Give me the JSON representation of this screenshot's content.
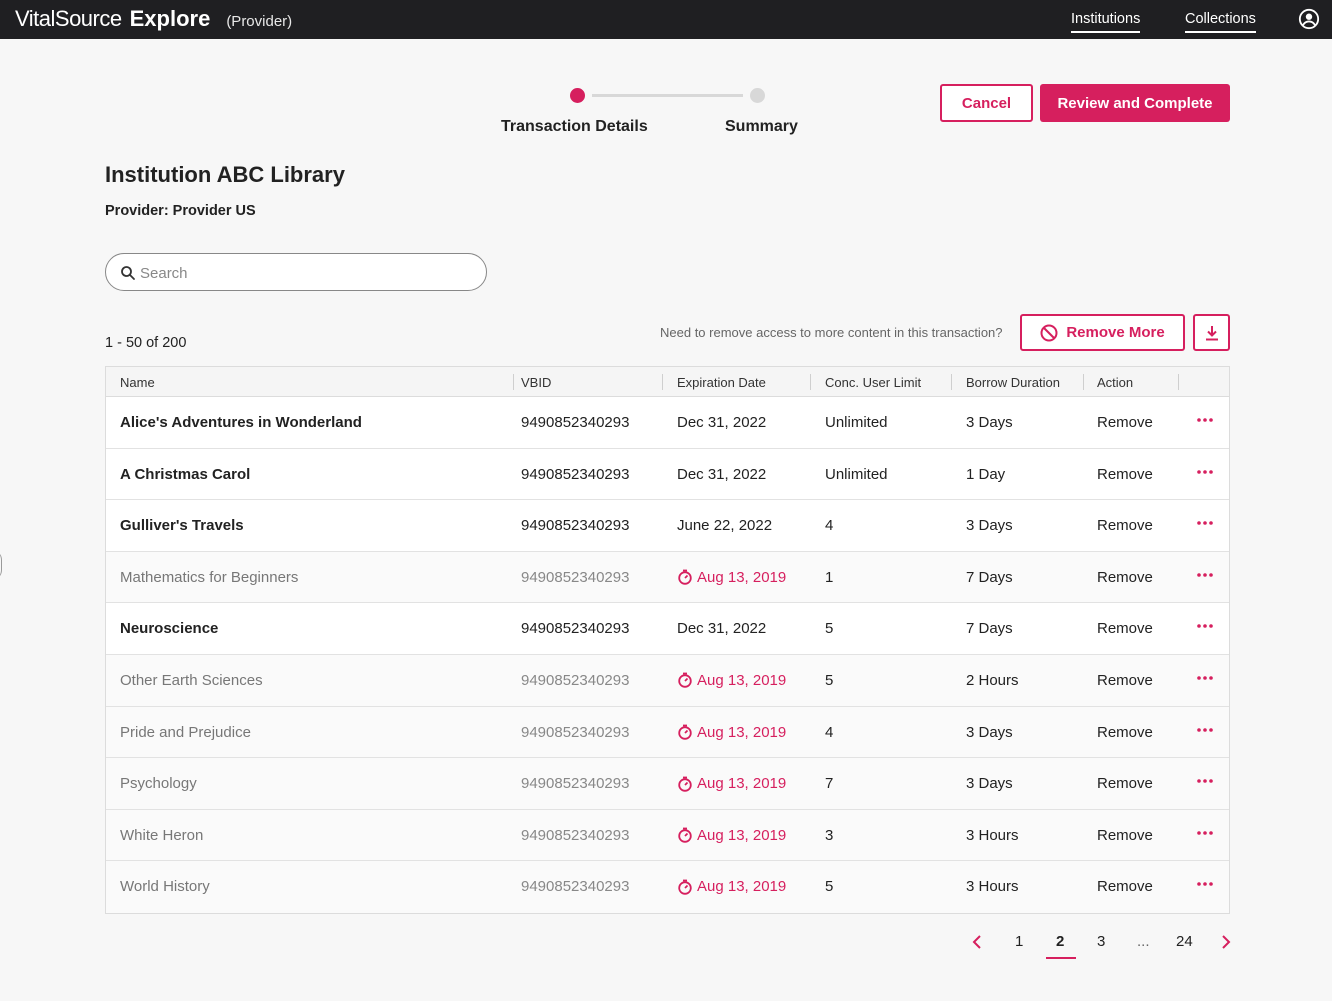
{
  "colors": {
    "accent": "#d61f5e",
    "topbar": "#1f1f22"
  },
  "brand": {
    "vital": "VitalSource",
    "explore": "Explore",
    "role": "(Provider)"
  },
  "nav": {
    "institutions": "Institutions",
    "collections": "Collections"
  },
  "stepper": {
    "step1": "Transaction Details",
    "step2": "Summary"
  },
  "buttons": {
    "cancel": "Cancel",
    "review": "Review and Complete",
    "remove_more": "Remove More"
  },
  "page": {
    "title": "Institution ABC Library",
    "provider": "Provider: Provider US"
  },
  "search": {
    "placeholder": "Search",
    "value": ""
  },
  "results": {
    "count": "1 - 50 of 200",
    "hint": "Need to remove access to more content in this transaction?"
  },
  "table": {
    "headers": {
      "name": "Name",
      "vbid": "VBID",
      "exp": "Expiration Date",
      "conc": "Conc. User Limit",
      "borrow": "Borrow Duration",
      "action": "Action"
    },
    "rows": [
      {
        "name": "Alice's Adventures in Wonderland",
        "vbid": "9490852340293",
        "exp": "Dec 31, 2022",
        "conc": "Unlimited",
        "borrow": "3 Days",
        "action": "Remove",
        "expired": false
      },
      {
        "name": "A Christmas Carol",
        "vbid": "9490852340293",
        "exp": "Dec 31, 2022",
        "conc": "Unlimited",
        "borrow": "1 Day",
        "action": "Remove",
        "expired": false
      },
      {
        "name": "Gulliver's Travels",
        "vbid": "9490852340293",
        "exp": "June 22, 2022",
        "conc": "4",
        "borrow": "3 Days",
        "action": "Remove",
        "expired": false
      },
      {
        "name": "Mathematics for Beginners",
        "vbid": "9490852340293",
        "exp": "Aug 13, 2019",
        "conc": "1",
        "borrow": "7 Days",
        "action": "Remove",
        "expired": true
      },
      {
        "name": "Neuroscience",
        "vbid": "9490852340293",
        "exp": "Dec 31, 2022",
        "conc": "5",
        "borrow": "7 Days",
        "action": "Remove",
        "expired": false
      },
      {
        "name": "Other Earth Sciences",
        "vbid": "9490852340293",
        "exp": "Aug 13, 2019",
        "conc": "5",
        "borrow": "2 Hours",
        "action": "Remove",
        "expired": true
      },
      {
        "name": "Pride and Prejudice",
        "vbid": "9490852340293",
        "exp": "Aug 13, 2019",
        "conc": "4",
        "borrow": "3 Days",
        "action": "Remove",
        "expired": true
      },
      {
        "name": "Psychology",
        "vbid": "9490852340293",
        "exp": "Aug 13, 2019",
        "conc": "7",
        "borrow": "3 Days",
        "action": "Remove",
        "expired": true
      },
      {
        "name": "White Heron",
        "vbid": "9490852340293",
        "exp": "Aug 13, 2019",
        "conc": "3",
        "borrow": "3 Hours",
        "action": "Remove",
        "expired": true
      },
      {
        "name": "World History",
        "vbid": "9490852340293",
        "exp": "Aug 13, 2019",
        "conc": "5",
        "borrow": "3 Hours",
        "action": "Remove",
        "expired": true
      }
    ]
  },
  "pagination": {
    "pages": [
      "1",
      "2",
      "3",
      "...",
      "24"
    ],
    "current": "2"
  },
  "icons": [
    "user-circle-icon",
    "search-icon",
    "prohibit-icon",
    "download-icon",
    "timer-icon",
    "more-options-icon",
    "chevron-left-icon",
    "chevron-right-icon"
  ]
}
